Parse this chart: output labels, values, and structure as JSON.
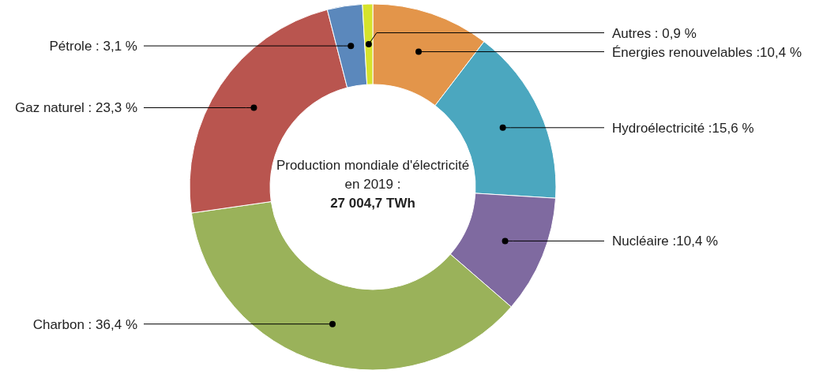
{
  "chart_data": {
    "type": "donut",
    "title": "Production mondiale d'électricité en 2019 :",
    "subtitle": "27 004,7 TWh",
    "categories": [
      "Énergies renouvelables",
      "Hydroélectricité",
      "Nucléaire",
      "Charbon",
      "Gaz naturel",
      "Pétrole",
      "Autres"
    ],
    "values": [
      10.4,
      15.6,
      10.4,
      36.4,
      23.3,
      3.1,
      0.9
    ],
    "value_labels": [
      ":10,4 %",
      ":15,6 %",
      ":10,4 %",
      ": 36,4 %",
      ": 23,3 %",
      ": 3,1 %",
      ": 0,9 %"
    ],
    "colors": [
      "#e3954a",
      "#4ba7bf",
      "#7f6aa0",
      "#9ab25a",
      "#b9554f",
      "#5b88bc",
      "#d6e32c"
    ]
  }
}
